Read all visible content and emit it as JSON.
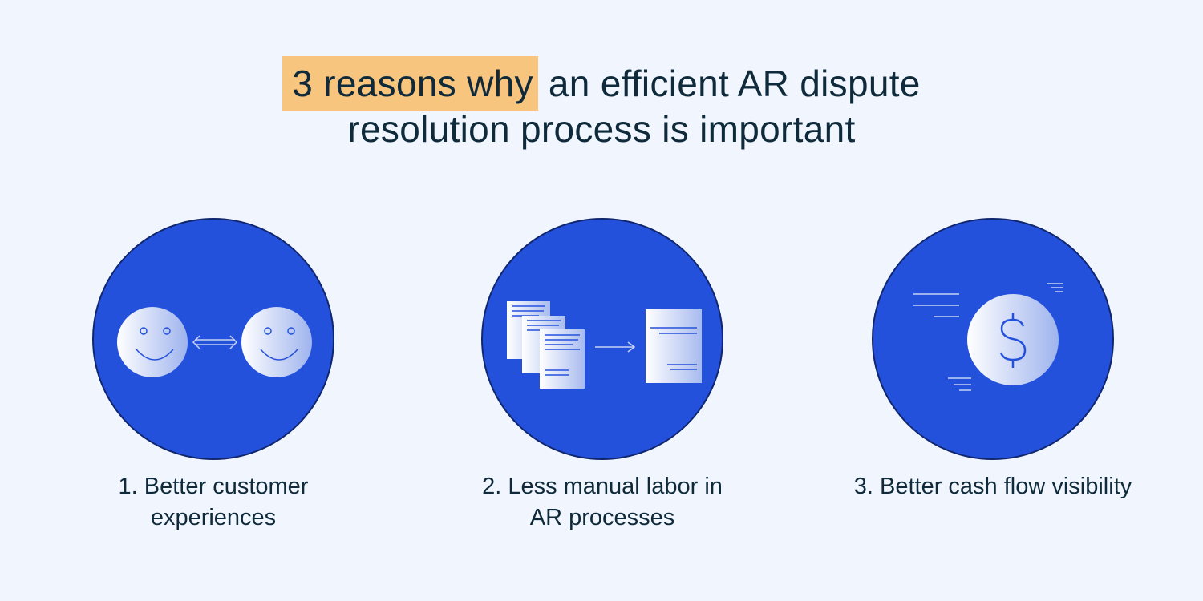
{
  "title": {
    "highlight": "3 reasons why",
    "line1_rest": " an efficient AR dispute",
    "line2": "resolution process is important"
  },
  "reasons": [
    {
      "label_line1": "1. Better customer",
      "label_line2": "experiences",
      "icon": "smiley-faces-exchange-icon"
    },
    {
      "label_line1": "2. Less manual labor in",
      "label_line2": "AR processes",
      "icon": "documents-to-document-icon"
    },
    {
      "label_line1": "3. Better cash flow visibility",
      "label_line2": "",
      "icon": "moving-dollar-coin-icon"
    }
  ],
  "colors": {
    "background": "#f1f5fd",
    "circle": "#2451dc",
    "highlight": "#f7c57e",
    "text": "#0f2a3a"
  }
}
